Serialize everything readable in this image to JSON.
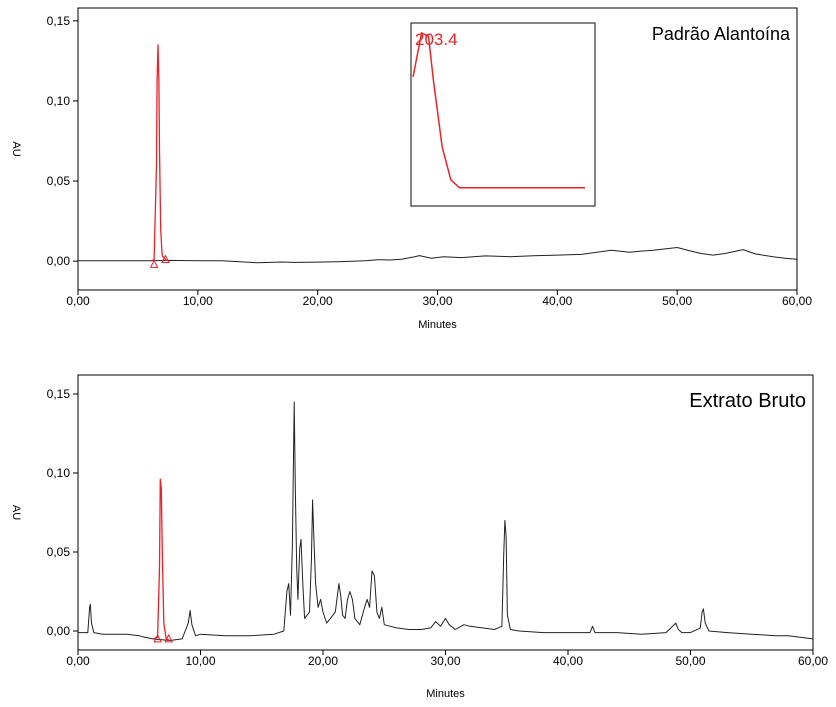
{
  "colors": {
    "trace": "#222222",
    "peak": "#e8232a",
    "axis": "#000000",
    "background": "#ffffff"
  },
  "chart_data": [
    {
      "type": "line",
      "title": "Padrão Alantoína",
      "xlabel": "Minutes",
      "ylabel": "AU",
      "xlim": [
        0,
        60
      ],
      "ylim": [
        -0.018,
        0.158
      ],
      "xticks": [
        0,
        10,
        20,
        30,
        40,
        50,
        60
      ],
      "xtick_labels": [
        "0,00",
        "10,00",
        "20,00",
        "30,00",
        "40,00",
        "50,00",
        "60,00"
      ],
      "yticks": [
        0,
        0.05,
        0.1,
        0.15
      ],
      "ytick_labels": [
        "0,00",
        "0,05",
        "0,10",
        "0,15"
      ],
      "grid": false,
      "series": [
        {
          "style": "baseline",
          "x": [
            0,
            5,
            6.1,
            7.5,
            10,
            12,
            15,
            17,
            18,
            20,
            22,
            24,
            25,
            26,
            27,
            28,
            28.5,
            29.5,
            30.5,
            32,
            34,
            36,
            38,
            40,
            42,
            43,
            44.5,
            46,
            47,
            48,
            50,
            51,
            52,
            53,
            54,
            55.5,
            56.5,
            58,
            59,
            60
          ],
          "y": [
            0.0003,
            0.0003,
            0.0002,
            0.0005,
            0.0003,
            0.0002,
            -0.001,
            -0.0005,
            -0.0008,
            -0.0006,
            -0.0003,
            0.0003,
            0.0009,
            0.0007,
            0.0012,
            0.0026,
            0.0035,
            0.0018,
            0.0028,
            0.0022,
            0.0033,
            0.0028,
            0.0034,
            0.0038,
            0.0042,
            0.0052,
            0.0068,
            0.0055,
            0.0063,
            0.0068,
            0.0085,
            0.0066,
            0.0048,
            0.0038,
            0.0048,
            0.0072,
            0.0045,
            0.0028,
            0.0018,
            0.0012
          ]
        },
        {
          "style": "peak",
          "x": [
            6.1,
            6.35,
            6.55,
            6.6,
            6.68,
            6.75,
            6.8,
            6.9,
            7.0,
            7.05,
            7.15,
            7.3,
            7.5
          ],
          "y": [
            0.0002,
            0.001,
            0.06,
            0.113,
            0.135,
            0.112,
            0.07,
            0.02,
            0.006,
            0.003,
            0.0025,
            0.0008,
            0.0005
          ]
        }
      ],
      "markers": [
        {
          "x": 6.35,
          "y": -0.002,
          "shape": "triangle"
        },
        {
          "x": 7.3,
          "y": 0.001,
          "shape": "triangle"
        }
      ],
      "inset": {
        "label": "203.4",
        "curve": [
          [
            0,
            0.73
          ],
          [
            0.05,
            1.0
          ],
          [
            0.09,
            0.98
          ],
          [
            0.12,
            0.7
          ],
          [
            0.17,
            0.3
          ],
          [
            0.22,
            0.1
          ],
          [
            0.27,
            0.05
          ],
          [
            1,
            0.05
          ]
        ]
      }
    },
    {
      "type": "line",
      "title": "Extrato Bruto",
      "xlabel": "Minutes",
      "ylabel": "AU",
      "xlim": [
        0,
        60
      ],
      "ylim": [
        -0.012,
        0.162
      ],
      "xticks": [
        0,
        10,
        20,
        30,
        40,
        50,
        60
      ],
      "xtick_labels": [
        "0,00",
        "10,00",
        "20,00",
        "30,00",
        "40,00",
        "50,00",
        "60,00"
      ],
      "yticks": [
        0,
        0.05,
        0.1,
        0.15
      ],
      "ytick_labels": [
        "0,00",
        "0,05",
        "0,10",
        "0,15"
      ],
      "grid": false,
      "series": [
        {
          "style": "baseline",
          "x": [
            0,
            0.8,
            0.95,
            1.0,
            1.1,
            1.3,
            2,
            4,
            5,
            5.5,
            6.1,
            7.5,
            8.5,
            9.0,
            9.15,
            9.3,
            9.6,
            10,
            12,
            14,
            16,
            16.8,
            17.05,
            17.2,
            17.35,
            17.5,
            17.65,
            17.75,
            17.85,
            17.95,
            18.1,
            18.2,
            18.35,
            18.5,
            18.7,
            18.9,
            19.05,
            19.15,
            19.25,
            19.4,
            19.6,
            19.8,
            20.0,
            20.3,
            20.6,
            21.0,
            21.3,
            21.45,
            21.6,
            21.8,
            22.0,
            22.2,
            22.4,
            22.6,
            23.0,
            23.4,
            23.6,
            23.8,
            24.0,
            24.2,
            24.4,
            24.6,
            24.8,
            25.0,
            25.5,
            26,
            27,
            28,
            28.8,
            29.2,
            29.6,
            30.0,
            30.3,
            30.8,
            31.5,
            32,
            33,
            34,
            34.6,
            34.75,
            34.85,
            34.95,
            35.05,
            35.3,
            36,
            38,
            40,
            41.8,
            42.0,
            42.2,
            44,
            46,
            48,
            48.8,
            49.0,
            49.3,
            50,
            50.8,
            50.95,
            51.05,
            51.2,
            51.5,
            53,
            55,
            57,
            58,
            59,
            60
          ],
          "y": [
            -0.001,
            -0.001,
            0.015,
            0.017,
            0.005,
            -0.001,
            -0.002,
            -0.002,
            -0.003,
            -0.004,
            -0.005,
            -0.006,
            -0.005,
            0.005,
            0.013,
            0.004,
            -0.003,
            -0.002,
            -0.003,
            -0.003,
            -0.002,
            0.0,
            0.025,
            0.03,
            0.01,
            0.055,
            0.145,
            0.087,
            0.04,
            0.02,
            0.052,
            0.058,
            0.03,
            0.008,
            0.01,
            0.012,
            0.045,
            0.083,
            0.06,
            0.03,
            0.015,
            0.02,
            0.012,
            0.005,
            0.008,
            0.012,
            0.03,
            0.022,
            0.01,
            0.008,
            0.02,
            0.025,
            0.02,
            0.008,
            0.004,
            0.015,
            0.02,
            0.015,
            0.038,
            0.035,
            0.012,
            0.008,
            0.015,
            0.004,
            0.003,
            0.002,
            0.001,
            0.001,
            0.002,
            0.006,
            0.003,
            0.008,
            0.004,
            0.001,
            0.004,
            0.003,
            0.002,
            0.001,
            0.003,
            0.048,
            0.07,
            0.06,
            0.01,
            0.001,
            0.0,
            -0.001,
            -0.001,
            -0.001,
            0.003,
            -0.001,
            -0.001,
            -0.002,
            -0.001,
            0.005,
            0.001,
            -0.001,
            -0.001,
            0.002,
            0.012,
            0.014,
            0.005,
            0.0,
            -0.001,
            -0.002,
            -0.003,
            -0.003,
            -0.004,
            -0.005
          ]
        },
        {
          "style": "peak",
          "x": [
            6.1,
            6.5,
            6.65,
            6.72,
            6.8,
            6.88,
            7.0,
            7.2,
            7.5
          ],
          "y": [
            -0.005,
            -0.004,
            0.04,
            0.096,
            0.09,
            0.05,
            0.005,
            -0.005,
            -0.006
          ]
        }
      ],
      "markers": [
        {
          "x": 6.5,
          "y": -0.005,
          "shape": "triangle"
        },
        {
          "x": 7.4,
          "y": -0.005,
          "shape": "triangle"
        }
      ]
    }
  ]
}
